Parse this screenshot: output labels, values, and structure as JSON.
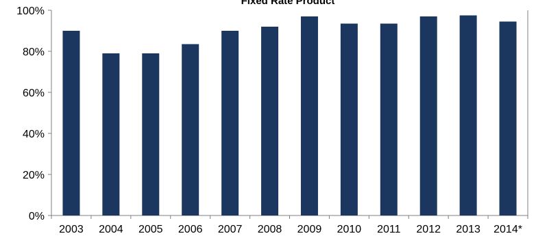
{
  "chart_data": {
    "type": "bar",
    "title": "Fixed Rate Product",
    "categories": [
      "2003",
      "2004",
      "2005",
      "2006",
      "2007",
      "2008",
      "2009",
      "2010",
      "2011",
      "2012",
      "2013",
      "2014*"
    ],
    "values": [
      90,
      79,
      79,
      83.5,
      90,
      92,
      97,
      93.5,
      93.5,
      97,
      97.5,
      94.5
    ],
    "ylim": [
      0,
      100
    ],
    "yticks": [
      0,
      20,
      40,
      60,
      80,
      100
    ],
    "ytick_labels": [
      "0%",
      "20%",
      "40%",
      "60%",
      "80%",
      "100%"
    ],
    "xlabel": "",
    "ylabel": "",
    "grid": false,
    "legend": "none",
    "bar_color": "#1b375f",
    "axis_color": "#7f7f7f"
  }
}
